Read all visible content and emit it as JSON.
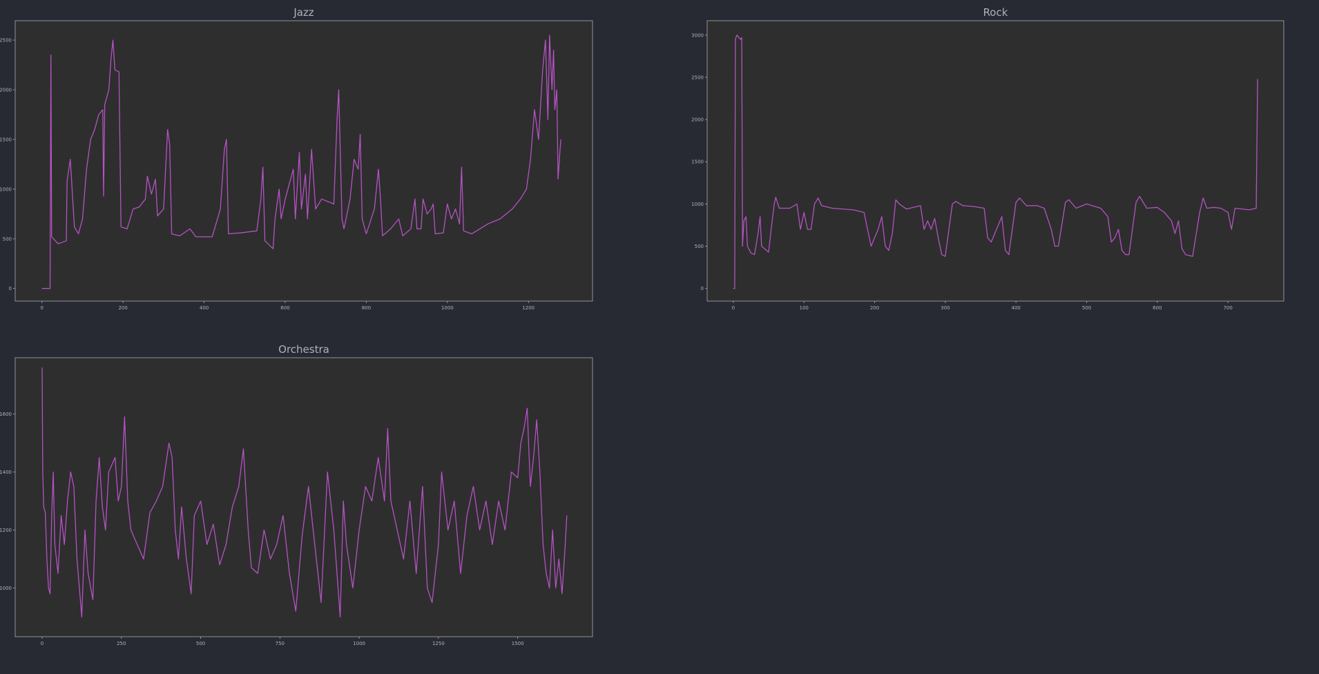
{
  "chart_data": [
    {
      "type": "line",
      "title": "Jazz",
      "color": "#b553c4",
      "xlim": [
        -66,
        1358
      ],
      "ylim": [
        -127,
        2695
      ],
      "xticks": [
        0,
        200,
        400,
        600,
        800,
        1000,
        1200
      ],
      "yticks": [
        0,
        500,
        1000,
        1500,
        2000,
        2500
      ],
      "x": [
        0,
        20,
        22,
        24,
        40,
        60,
        62,
        70,
        80,
        90,
        100,
        110,
        120,
        130,
        140,
        150,
        152,
        155,
        165,
        170,
        175,
        180,
        190,
        195,
        210,
        225,
        240,
        255,
        260,
        270,
        280,
        285,
        300,
        310,
        315,
        320,
        340,
        365,
        380,
        420,
        440,
        450,
        455,
        460,
        490,
        530,
        540,
        545,
        550,
        570,
        575,
        585,
        590,
        600,
        620,
        625,
        635,
        640,
        650,
        655,
        665,
        675,
        690,
        720,
        728,
        732,
        740,
        745,
        760,
        770,
        780,
        785,
        790,
        800,
        820,
        830,
        835,
        840,
        860,
        880,
        890,
        910,
        920,
        925,
        935,
        940,
        950,
        960,
        965,
        970,
        990,
        1000,
        1010,
        1020,
        1030,
        1035,
        1040,
        1060,
        1080,
        1100,
        1130,
        1160,
        1180,
        1195,
        1205,
        1215,
        1225,
        1235,
        1242,
        1248,
        1252,
        1258,
        1262,
        1265,
        1270,
        1273,
        1278,
        1280
      ],
      "values": [
        0,
        0,
        2350,
        520,
        450,
        480,
        1080,
        1300,
        620,
        550,
        700,
        1200,
        1500,
        1600,
        1750,
        1800,
        930,
        1850,
        2000,
        2300,
        2500,
        2200,
        2180,
        620,
        600,
        800,
        820,
        900,
        1130,
        950,
        1100,
        730,
        800,
        1600,
        1450,
        550,
        530,
        600,
        520,
        520,
        800,
        1400,
        1500,
        550,
        560,
        580,
        900,
        1220,
        480,
        400,
        700,
        1000,
        700,
        900,
        1200,
        700,
        1370,
        800,
        1150,
        700,
        1400,
        800,
        900,
        850,
        1700,
        2000,
        700,
        600,
        900,
        1300,
        1200,
        1550,
        700,
        550,
        800,
        1200,
        900,
        530,
        600,
        700,
        530,
        600,
        900,
        600,
        600,
        900,
        750,
        800,
        850,
        550,
        560,
        850,
        700,
        800,
        650,
        1220,
        580,
        550,
        600,
        650,
        700,
        800,
        900,
        1000,
        1300,
        1800,
        1500,
        2200,
        2500,
        1700,
        2550,
        2000,
        2400,
        1800,
        2000,
        1100,
        1400,
        1500
      ]
    },
    {
      "type": "line",
      "title": "Rock",
      "color": "#b553c4",
      "xlim": [
        -37,
        779
      ],
      "ylim": [
        -150,
        3170
      ],
      "xticks": [
        0,
        100,
        200,
        300,
        400,
        500,
        600,
        700
      ],
      "yticks": [
        0,
        500,
        1000,
        1500,
        2000,
        2500,
        3000
      ],
      "x": [
        0,
        2,
        3,
        5,
        10,
        12,
        13,
        15,
        18,
        20,
        25,
        30,
        35,
        38,
        40,
        50,
        55,
        58,
        60,
        65,
        80,
        90,
        95,
        100,
        105,
        110,
        115,
        120,
        125,
        140,
        170,
        185,
        190,
        195,
        200,
        205,
        210,
        215,
        220,
        225,
        230,
        235,
        245,
        265,
        270,
        275,
        280,
        285,
        290,
        295,
        300,
        310,
        315,
        325,
        340,
        355,
        360,
        365,
        380,
        385,
        390,
        400,
        405,
        415,
        430,
        440,
        450,
        455,
        460,
        470,
        475,
        485,
        500,
        520,
        530,
        535,
        540,
        545,
        550,
        555,
        560,
        570,
        575,
        585,
        600,
        610,
        620,
        625,
        630,
        635,
        640,
        650,
        660,
        665,
        670,
        680,
        690,
        700,
        705,
        710,
        730,
        740,
        742
      ],
      "values": [
        0,
        0,
        2950,
        3000,
        2950,
        2970,
        500,
        800,
        850,
        500,
        420,
        400,
        650,
        850,
        500,
        430,
        800,
        1000,
        1080,
        950,
        950,
        1000,
        700,
        900,
        700,
        700,
        1000,
        1070,
        980,
        950,
        930,
        900,
        700,
        500,
        600,
        700,
        850,
        500,
        450,
        650,
        1050,
        1000,
        940,
        980,
        700,
        800,
        700,
        830,
        600,
        400,
        380,
        1000,
        1030,
        980,
        970,
        950,
        600,
        550,
        850,
        450,
        400,
        1020,
        1070,
        980,
        980,
        950,
        700,
        500,
        500,
        1020,
        1050,
        950,
        1000,
        950,
        850,
        550,
        600,
        700,
        450,
        400,
        400,
        1020,
        1090,
        950,
        960,
        900,
        800,
        650,
        800,
        470,
        400,
        380,
        900,
        1070,
        950,
        960,
        950,
        900,
        700,
        950,
        930,
        950,
        2480
      ]
    },
    {
      "type": "line",
      "title": "Orchestra",
      "color": "#b553c4",
      "xlim": [
        -85,
        1736
      ],
      "ylim": [
        832,
        1794
      ],
      "xticks": [
        0,
        250,
        500,
        750,
        1000,
        1250,
        1500
      ],
      "yticks": [
        1000,
        1200,
        1400,
        1600
      ],
      "x": [
        0,
        2,
        5,
        10,
        15,
        20,
        25,
        30,
        35,
        40,
        50,
        60,
        70,
        80,
        90,
        100,
        110,
        125,
        135,
        145,
        160,
        170,
        180,
        190,
        200,
        210,
        230,
        240,
        250,
        260,
        270,
        280,
        300,
        320,
        340,
        360,
        380,
        400,
        410,
        420,
        430,
        440,
        455,
        470,
        480,
        500,
        520,
        540,
        560,
        580,
        600,
        620,
        635,
        650,
        660,
        680,
        700,
        720,
        740,
        760,
        780,
        800,
        820,
        840,
        860,
        880,
        900,
        920,
        940,
        950,
        960,
        980,
        1000,
        1020,
        1040,
        1060,
        1080,
        1090,
        1100,
        1120,
        1140,
        1160,
        1180,
        1200,
        1215,
        1230,
        1250,
        1260,
        1280,
        1300,
        1320,
        1340,
        1360,
        1380,
        1400,
        1420,
        1440,
        1460,
        1480,
        1500,
        1510,
        1520,
        1530,
        1540,
        1550,
        1560,
        1570,
        1580,
        1590,
        1600,
        1610,
        1620,
        1630,
        1640,
        1650,
        1655
      ],
      "values": [
        1760,
        1400,
        1280,
        1260,
        1100,
        1000,
        980,
        1250,
        1400,
        1150,
        1050,
        1250,
        1150,
        1300,
        1400,
        1350,
        1100,
        900,
        1200,
        1050,
        960,
        1300,
        1450,
        1280,
        1200,
        1400,
        1450,
        1300,
        1350,
        1590,
        1300,
        1200,
        1150,
        1100,
        1260,
        1300,
        1350,
        1500,
        1450,
        1200,
        1100,
        1280,
        1100,
        980,
        1250,
        1300,
        1150,
        1220,
        1080,
        1150,
        1280,
        1350,
        1480,
        1200,
        1070,
        1050,
        1200,
        1100,
        1150,
        1250,
        1050,
        920,
        1180,
        1350,
        1150,
        950,
        1400,
        1200,
        900,
        1300,
        1150,
        1000,
        1200,
        1350,
        1300,
        1450,
        1300,
        1550,
        1300,
        1200,
        1100,
        1300,
        1050,
        1350,
        1000,
        950,
        1150,
        1400,
        1200,
        1300,
        1050,
        1250,
        1350,
        1200,
        1300,
        1150,
        1300,
        1200,
        1400,
        1380,
        1500,
        1550,
        1620,
        1350,
        1450,
        1580,
        1400,
        1150,
        1050,
        1000,
        1200,
        1000,
        1100,
        980,
        1150,
        1250
      ]
    }
  ]
}
